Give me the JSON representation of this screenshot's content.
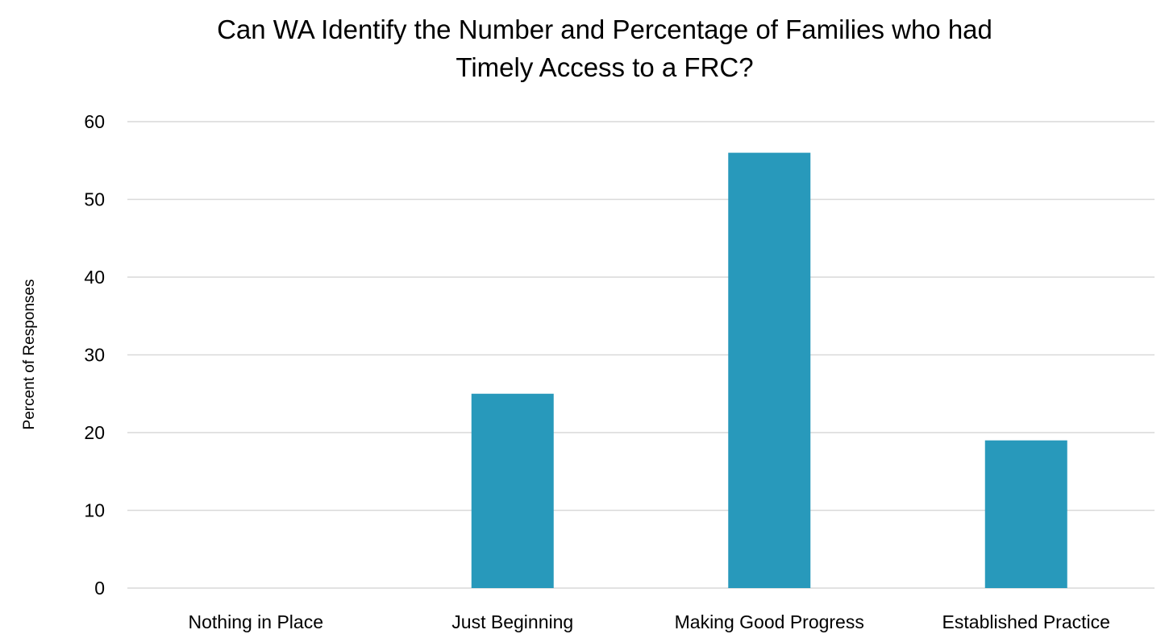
{
  "chart_data": {
    "type": "bar",
    "title_lines": [
      "Can WA Identify the Number and Percentage of Families who had",
      "Timely Access to a FRC?"
    ],
    "xlabel": "",
    "ylabel": "Percent of Responses",
    "categories": [
      "Nothing in Place",
      "Just Beginning",
      "Making Good Progress",
      "Established Practice"
    ],
    "values": [
      0,
      25,
      56,
      19
    ],
    "ylim": [
      0,
      60
    ],
    "yticks": [
      0,
      10,
      20,
      30,
      40,
      50,
      60
    ],
    "bar_color": "#2899bb",
    "grid": true,
    "legend": "none"
  }
}
